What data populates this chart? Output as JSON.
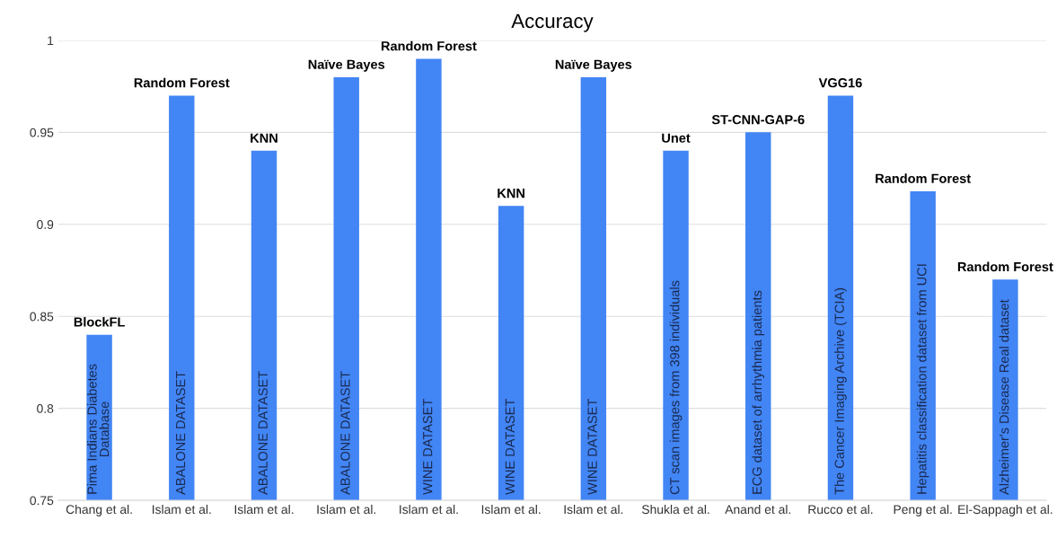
{
  "chart_data": {
    "type": "bar",
    "title": "Accuracy",
    "categories": [
      "Chang et al.",
      "Islam et al.",
      "Islam et al.",
      "Islam et al.",
      "Islam et al.",
      "Islam et al.",
      "Islam et al.",
      "Shukla et al.",
      "Anand et al.",
      "Rucco et al.",
      "Peng et al.",
      "El-Sappagh et al."
    ],
    "values": [
      0.84,
      0.97,
      0.94,
      0.98,
      0.99,
      0.91,
      0.98,
      0.94,
      0.95,
      0.97,
      0.918,
      0.87
    ],
    "value_labels": [
      "BlockFL",
      "Random Forest",
      "KNN",
      "Naïve Bayes",
      "Random Forest",
      "KNN",
      "Naïve Bayes",
      "Unet",
      "ST-CNN-GAP-6",
      "VGG16",
      "Random Forest",
      "Random Forest"
    ],
    "annotations": [
      "Pima Indians Diabetes\nDatabase",
      "ABALONE DATASET",
      "ABALONE DATASET",
      "ABALONE DATASET",
      "WINE DATASET",
      "WINE DATASET",
      "WINE DATASET",
      "CT scan images from 398 individuals",
      "ECG dataset of arrhythmia patients",
      "The Cancer Imaging Archive (TCIA)",
      "Hepatitis classification dataset from UCI",
      "Alzheimer's Disease Real dataset"
    ],
    "color": "#4285f4",
    "ylim": [
      0.75,
      1
    ],
    "yticks": [
      0.75,
      0.8,
      0.85,
      0.9,
      0.95,
      1
    ],
    "grid": "y"
  }
}
